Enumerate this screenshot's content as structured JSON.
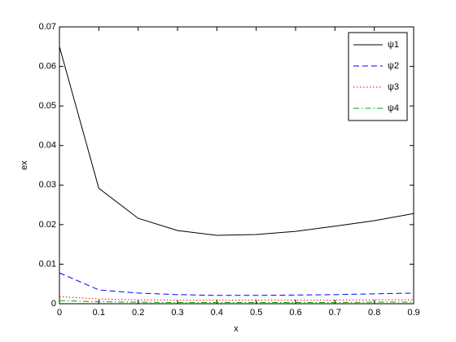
{
  "chart_data": {
    "type": "line",
    "xlabel": "x",
    "ylabel": "ex",
    "x": [
      0,
      0.1,
      0.2,
      0.3,
      0.4,
      0.5,
      0.6,
      0.7,
      0.8,
      0.9
    ],
    "series": [
      {
        "name": "ψ1",
        "color": "#000000",
        "linestyle": "solid",
        "values": [
          0.065,
          0.0292,
          0.0216,
          0.0185,
          0.0173,
          0.0175,
          0.0183,
          0.0196,
          0.021,
          0.0228
        ]
      },
      {
        "name": "ψ2",
        "color": "#0000ff",
        "linestyle": "dashed",
        "values": [
          0.0078,
          0.0035,
          0.0027,
          0.0023,
          0.0021,
          0.0021,
          0.0022,
          0.0023,
          0.0025,
          0.0027
        ]
      },
      {
        "name": "ψ3",
        "color": "#ff0000",
        "linestyle": "dotted",
        "values": [
          0.0018,
          0.0012,
          0.001,
          0.0009,
          0.0009,
          0.0009,
          0.0009,
          0.0009,
          0.001,
          0.001
        ]
      },
      {
        "name": "ψ4",
        "color": "#00aa00",
        "linestyle": "dashdot",
        "values": [
          0.0008,
          0.0005,
          0.0004,
          0.0003,
          0.0003,
          0.0003,
          0.0003,
          0.0003,
          0.0004,
          0.0004
        ]
      }
    ],
    "xlim": [
      0,
      0.9
    ],
    "xticks": [
      0,
      0.1,
      0.2,
      0.3,
      0.4,
      0.5,
      0.6,
      0.7,
      0.8,
      0.9
    ],
    "ylim": [
      0,
      0.07
    ],
    "yticks": [
      0,
      0.01,
      0.02,
      0.03,
      0.04,
      0.05,
      0.06,
      0.07
    ],
    "grid": false,
    "legend": "northeast"
  }
}
